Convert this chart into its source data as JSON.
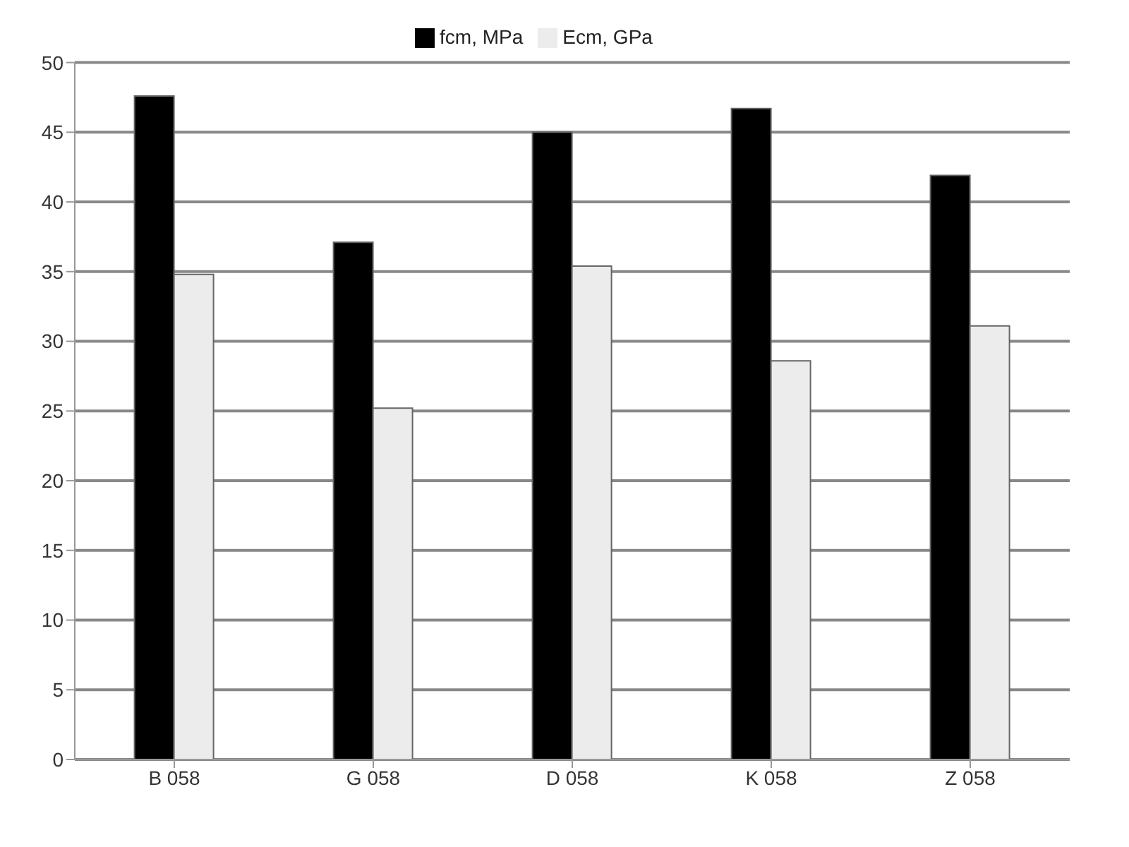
{
  "chart_data": {
    "type": "bar",
    "categories": [
      "B 058",
      "G 058",
      "D 058",
      "K 058",
      "Z 058"
    ],
    "series": [
      {
        "name": "fcm, MPa",
        "color": "#000000",
        "values": [
          47.6,
          37.1,
          45.0,
          46.7,
          41.9
        ]
      },
      {
        "name": "Ecm, GPa",
        "color": "#ececec",
        "values": [
          34.8,
          25.2,
          35.4,
          28.6,
          31.1
        ]
      }
    ],
    "ylim": [
      0,
      50
    ],
    "yticks": [
      0,
      5,
      10,
      15,
      20,
      25,
      30,
      35,
      40,
      45,
      50
    ],
    "grid": "y",
    "legend": "top"
  }
}
